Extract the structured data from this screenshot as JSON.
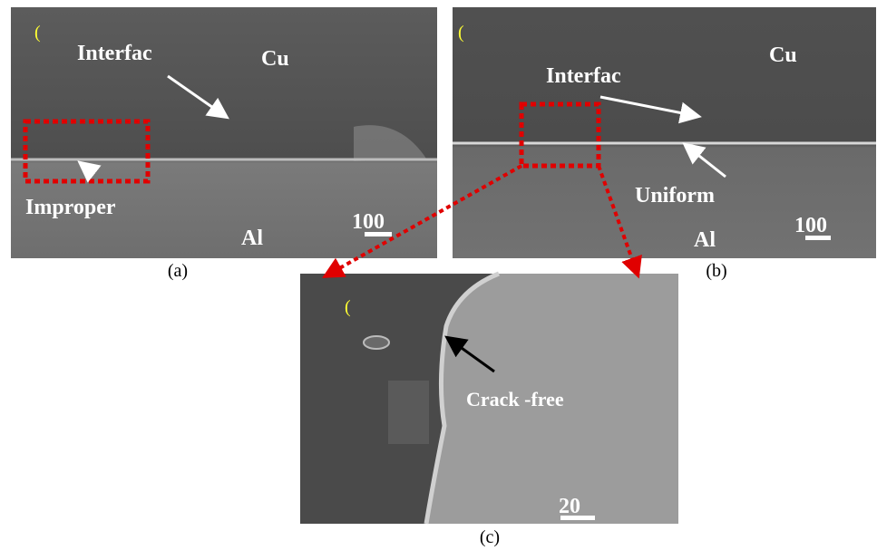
{
  "panels": [
    {
      "caption": "(a)",
      "marker": "(",
      "interface_label": "Interfac",
      "material_top": "Cu",
      "feature_label": "Improper",
      "scale_bar": "100",
      "material_bottom": "Al"
    },
    {
      "caption": "(b)",
      "marker": "(",
      "interface_label": "Interfac",
      "material_top": "Cu",
      "feature_label": "Uniform",
      "scale_bar": "100",
      "material_bottom": "Al"
    },
    {
      "caption": "(c)",
      "marker": "(",
      "feature_label": "Crack -free",
      "scale_bar": "20"
    }
  ]
}
